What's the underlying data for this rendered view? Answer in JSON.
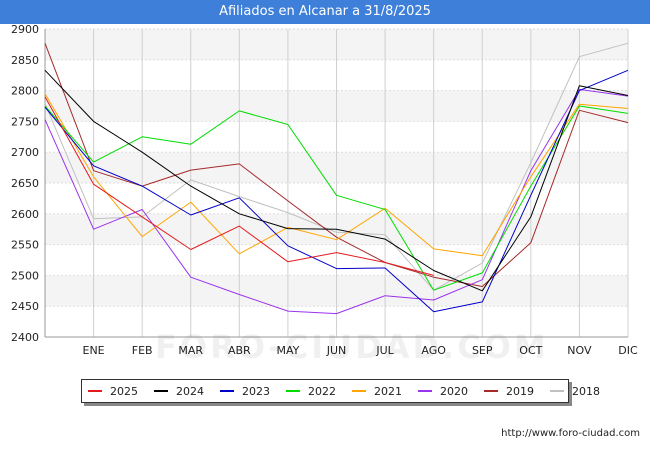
{
  "header": {
    "title": "Afiliados en Alcanar a 31/8/2025"
  },
  "watermark": "FORO-CIUDAD.COM",
  "source": "http://www.foro-ciudad.com",
  "chart_data": {
    "type": "line",
    "title": "Afiliados en Alcanar a 31/8/2025",
    "categories": [
      "",
      "ENE",
      "FEB",
      "MAR",
      "ABR",
      "MAY",
      "JUN",
      "JUL",
      "AGO",
      "SEP",
      "OCT",
      "NOV",
      "DIC"
    ],
    "y_ticks": [
      2400,
      2450,
      2500,
      2550,
      2600,
      2650,
      2700,
      2750,
      2800,
      2850,
      2900
    ],
    "ylim": [
      2400,
      2900
    ],
    "grid": true,
    "legend_position": "bottom",
    "series": [
      {
        "name": "2025",
        "color": "#e41a1c",
        "values": [
          2790,
          2648,
          2595,
          2542,
          2580,
          2522,
          2537,
          2521,
          2500,
          null,
          null,
          null,
          null
        ]
      },
      {
        "name": "2024",
        "color": "#000000",
        "values": [
          2833,
          2750,
          2700,
          2645,
          2600,
          2576,
          2575,
          2559,
          2508,
          2475,
          2595,
          2808,
          2792
        ]
      },
      {
        "name": "2023",
        "color": "#0000cc",
        "values": [
          2773,
          2678,
          2645,
          2598,
          2626,
          2548,
          2511,
          2512,
          2441,
          2457,
          2630,
          2800,
          2833
        ]
      },
      {
        "name": "2022",
        "color": "#00dd00",
        "values": [
          2775,
          2684,
          2725,
          2713,
          2767,
          2745,
          2630,
          2607,
          2476,
          2504,
          2645,
          2775,
          2763
        ]
      },
      {
        "name": "2021",
        "color": "#ffa500",
        "values": [
          2795,
          2660,
          2563,
          2619,
          2535,
          2578,
          2558,
          2609,
          2543,
          2532,
          2660,
          2778,
          2771
        ]
      },
      {
        "name": "2020",
        "color": "#9933ee",
        "values": [
          2753,
          2575,
          2607,
          2497,
          2469,
          2442,
          2438,
          2467,
          2460,
          2493,
          2670,
          2802,
          2791
        ]
      },
      {
        "name": "2019",
        "color": "#a52a2a",
        "values": [
          2877,
          2670,
          2645,
          2671,
          2681,
          2621,
          2562,
          2521,
          2497,
          2482,
          2553,
          2768,
          2748
        ]
      },
      {
        "name": "2018",
        "color": "#c0c0c0",
        "values": [
          2779,
          2592,
          2595,
          2655,
          2628,
          2602,
          2570,
          2566,
          2476,
          2520,
          2683,
          2855,
          2877
        ]
      }
    ]
  }
}
